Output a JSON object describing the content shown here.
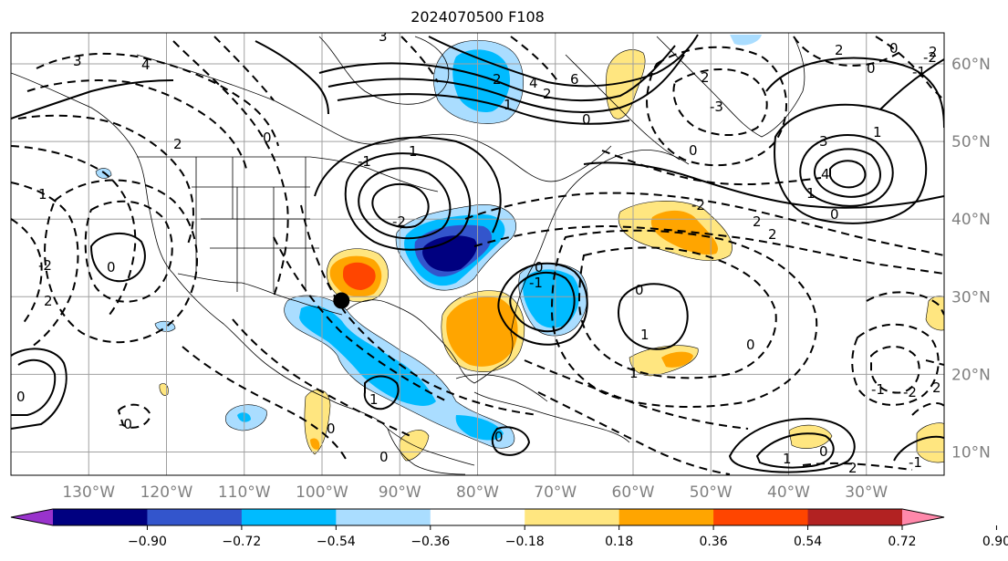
{
  "title": "2024070500 F108",
  "map": {
    "projection": "PlateCarree",
    "extent_lon": [
      -140,
      -20
    ],
    "extent_lat": [
      7,
      64
    ],
    "lon_ticks": [
      {
        "deg": -130,
        "label": "130°W"
      },
      {
        "deg": -120,
        "label": "120°W"
      },
      {
        "deg": -110,
        "label": "110°W"
      },
      {
        "deg": -100,
        "label": "100°W"
      },
      {
        "deg": -90,
        "label": "90°W"
      },
      {
        "deg": -80,
        "label": "80°W"
      },
      {
        "deg": -70,
        "label": "70°W"
      },
      {
        "deg": -60,
        "label": "60°W"
      },
      {
        "deg": -50,
        "label": "50°W"
      },
      {
        "deg": -40,
        "label": "40°W"
      },
      {
        "deg": -30,
        "label": "30°W"
      }
    ],
    "lat_ticks": [
      {
        "deg": 10,
        "label": "10°N"
      },
      {
        "deg": 20,
        "label": "20°N"
      },
      {
        "deg": 30,
        "label": "30°N"
      },
      {
        "deg": 40,
        "label": "40°N"
      },
      {
        "deg": 50,
        "label": "50°N"
      },
      {
        "deg": 60,
        "label": "60°N"
      }
    ],
    "marker": {
      "name": "point-marker",
      "lon": -97.5,
      "lat": 29.5,
      "color": "#000000"
    },
    "contour_labels": [
      "3",
      "4",
      "2",
      "0",
      "-2",
      "1",
      "2",
      "0",
      "3",
      "6",
      "4",
      "2",
      "0",
      "2",
      "1",
      "-3",
      "0",
      "0",
      "2",
      "2",
      "-1",
      "1",
      "0",
      "2",
      "3",
      "4",
      "1",
      "0",
      "1",
      "-2",
      "-1",
      "2",
      "2",
      "-2",
      "0",
      "0",
      "-1",
      "1",
      "0",
      "-1",
      "-2",
      "2",
      "1",
      "1",
      "-0",
      "0",
      "0",
      "0",
      "1",
      "0",
      "0",
      "2",
      "-1",
      "-2"
    ]
  },
  "colorbar": {
    "colors": [
      "#9933cc",
      "#000080",
      "#3355cc",
      "#00bbff",
      "#aaddff",
      "#ffffff",
      "#ffe680",
      "#ffa500",
      "#ff4500",
      "#b22222",
      "#ff88aa"
    ],
    "tick_labels": [
      "−0.90",
      "−0.72",
      "−0.54",
      "−0.36",
      "−0.18",
      "0.18",
      "0.36",
      "0.54",
      "0.72",
      "0.90"
    ]
  }
}
